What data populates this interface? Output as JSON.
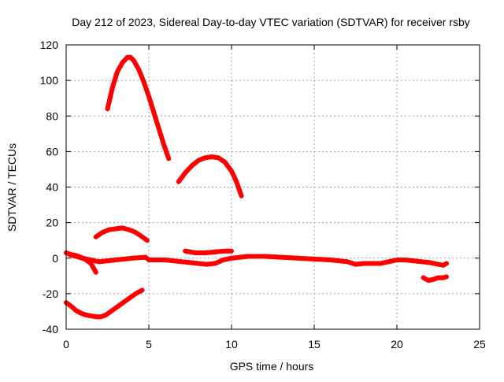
{
  "chart_data": {
    "type": "scatter",
    "title": "Day 212 of 2023, Sidereal Day-to-day VTEC variation (SDTVAR) for receiver rsby",
    "xlabel": "GPS time / hours",
    "ylabel": "SDTVAR / TECUs",
    "xlim": [
      0,
      25
    ],
    "ylim": [
      -40,
      120
    ],
    "xticks": [
      0,
      5,
      10,
      15,
      20,
      25
    ],
    "yticks": [
      -40,
      -20,
      0,
      20,
      40,
      60,
      80,
      100,
      120
    ],
    "xtick_labels": [
      "0",
      "5",
      "10",
      "15",
      "20",
      "25"
    ],
    "ytick_labels": [
      "-40",
      "-20",
      "0",
      "20",
      "40",
      "60",
      "80",
      "100",
      "120"
    ],
    "grid": true,
    "series_color": "#ff0000",
    "series": [
      {
        "name": "arc-peak-113",
        "x": [
          2.5,
          2.8,
          3.1,
          3.4,
          3.7,
          3.9,
          4.1,
          4.4,
          4.7,
          5.0,
          5.3,
          5.6,
          5.9,
          6.2
        ],
        "y": [
          84,
          96,
          105,
          110,
          113,
          113,
          111,
          106,
          99,
          91,
          82,
          73,
          64,
          56
        ]
      },
      {
        "name": "arc-peak-57",
        "x": [
          6.8,
          7.2,
          7.6,
          8.0,
          8.4,
          8.8,
          9.2,
          9.6,
          10.0,
          10.3,
          10.6
        ],
        "y": [
          43,
          48,
          52,
          55,
          56.5,
          57,
          56.5,
          54,
          49,
          43,
          35
        ]
      },
      {
        "name": "arc-peak-17",
        "x": [
          1.8,
          2.2,
          2.6,
          3.0,
          3.4,
          3.8,
          4.2,
          4.6,
          4.9
        ],
        "y": [
          12,
          14.5,
          16,
          16.5,
          17,
          16,
          14.5,
          12,
          10
        ]
      },
      {
        "name": "arc-level-4",
        "x": [
          7.2,
          7.8,
          8.4,
          9.0,
          9.6,
          10.0
        ],
        "y": [
          4,
          3,
          3,
          3.5,
          4,
          4
        ]
      },
      {
        "name": "arc-negative-33",
        "x": [
          0.0,
          0.3,
          0.6,
          0.9,
          1.2,
          1.5,
          1.8,
          2.1,
          2.4,
          2.7,
          3.0,
          3.3,
          3.6,
          3.9,
          4.2,
          4.6
        ],
        "y": [
          -25,
          -27,
          -29.5,
          -31,
          -32,
          -32.5,
          -33,
          -33,
          -32,
          -30,
          -28,
          -26,
          -24,
          -22,
          -20,
          -18
        ]
      },
      {
        "name": "arc-early-dip",
        "x": [
          0.0,
          0.3,
          0.6,
          0.9,
          1.2,
          1.5,
          1.8
        ],
        "y": [
          3,
          2,
          1.5,
          0.5,
          -1,
          -3,
          -8
        ]
      },
      {
        "name": "arc-baseline",
        "x": [
          0.2,
          1.0,
          2.0,
          3.0,
          4.0,
          4.8,
          5.0,
          5.5,
          6.0,
          7.0,
          8.0,
          8.5,
          9.0,
          9.5,
          10.0,
          11.0,
          12.0,
          13.0,
          14.0,
          15.0,
          16.0,
          16.5,
          17.0,
          17.5,
          18.0,
          18.5,
          19.0,
          19.5,
          20.0,
          20.5,
          21.0,
          21.5,
          22.0,
          22.5,
          22.8,
          23.0
        ],
        "y": [
          2,
          0,
          -2,
          -1,
          0,
          0.5,
          -1,
          -1,
          -1,
          -2,
          -3,
          -3.5,
          -3,
          -1,
          0,
          1,
          1,
          0.5,
          0,
          -0.5,
          -1,
          -1.5,
          -2,
          -3.5,
          -3,
          -3,
          -3,
          -2,
          -1,
          -1,
          -1.5,
          -2,
          -2.5,
          -3.5,
          -4,
          -3
        ]
      },
      {
        "name": "arc-late-negative-11",
        "x": [
          21.6,
          21.9,
          22.2,
          22.5,
          22.8,
          23.0
        ],
        "y": [
          -11,
          -12.5,
          -12,
          -11,
          -11,
          -10.5
        ]
      }
    ]
  }
}
